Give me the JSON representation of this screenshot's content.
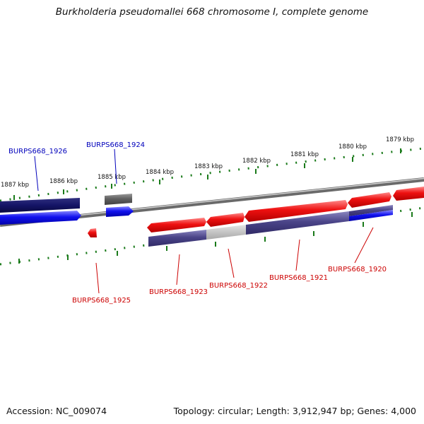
{
  "title": "Burkholderia pseudomallei 668 chromosome I, complete genome",
  "accession": "Accession: NC_009074",
  "summary": "Topology: circular; Length: 3,912,947 bp; Genes: 4,000",
  "colors": {
    "forward_gene": "#ee1111",
    "reverse_gene": "#1111ee",
    "dark_blue": "#141466",
    "purple": "#4a4488",
    "gray": "#606060",
    "light_gray": "#c4c4c4",
    "tick": "#1a7a1a",
    "backbone": "#8a8a8a",
    "label_forward": "#cc0000",
    "label_reverse": "#0000bb"
  },
  "scale_ticks": [
    {
      "label": "1887 kbp"
    },
    {
      "label": "1886 kbp"
    },
    {
      "label": "1885 kbp"
    },
    {
      "label": "1884 kbp"
    },
    {
      "label": "1883 kbp"
    },
    {
      "label": "1882 kbp"
    },
    {
      "label": "1881 kbp"
    },
    {
      "label": "1880 kbp"
    },
    {
      "label": "1879 kbp"
    }
  ],
  "gene_labels": [
    {
      "name": "BURPS668_1926",
      "strand": "reverse"
    },
    {
      "name": "BURPS668_1924",
      "strand": "reverse"
    },
    {
      "name": "BURPS668_1925",
      "strand": "forward"
    },
    {
      "name": "BURPS668_1923",
      "strand": "forward"
    },
    {
      "name": "BURPS668_1922",
      "strand": "forward"
    },
    {
      "name": "BURPS668_1921",
      "strand": "forward"
    },
    {
      "name": "BURPS668_1920",
      "strand": "forward"
    }
  ]
}
